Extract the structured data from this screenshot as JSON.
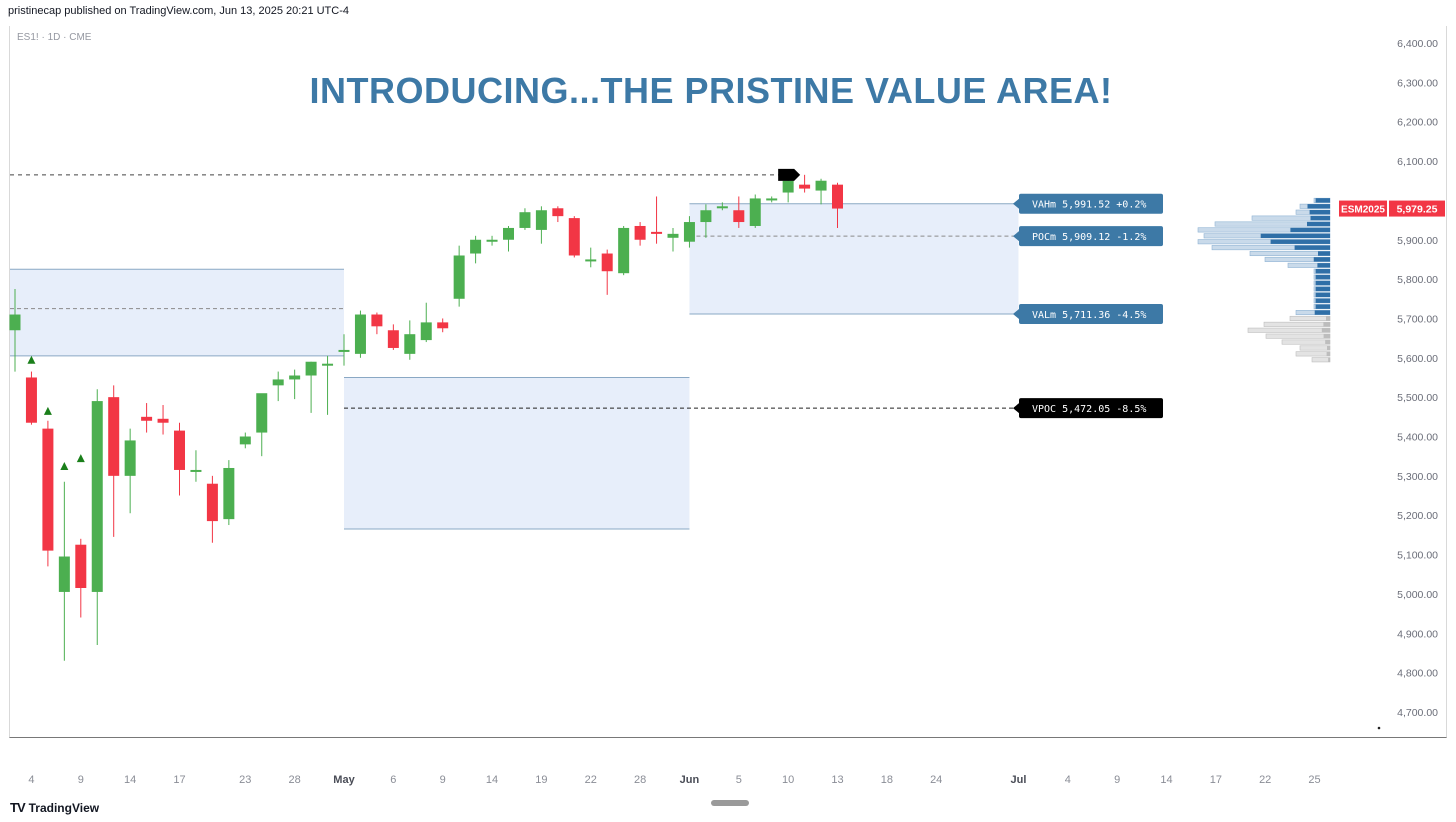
{
  "header": {
    "publisher": "pristinecap published on TradingView.com, Jun 13, 2025 20:21 UTC-4"
  },
  "symbol_line": "ES1! · 1D · CME",
  "headline": "INTRODUCING...THE PRISTINE VALUE AREA!",
  "footer": {
    "brand": "TradingView",
    "logo": "TV"
  },
  "chart_data": {
    "type": "candlestick",
    "title": "INTRODUCING...THE PRISTINE VALUE AREA!",
    "symbol": "ES1! · 1D · CME",
    "ylim": [
      4650,
      6450
    ],
    "y_ticks": [
      "6,400.00",
      "6,300.00",
      "6,200.00",
      "6,100.00",
      "6,000.00",
      "5,900.00",
      "5,800.00",
      "5,700.00",
      "5,600.00",
      "5,500.00",
      "5,400.00",
      "5,300.00",
      "5,200.00",
      "5,100.00",
      "5,000.00",
      "4,900.00",
      "4,800.00",
      "4,700.00"
    ],
    "y_tick_values": [
      6400,
      6300,
      6200,
      6100,
      6000,
      5900,
      5800,
      5700,
      5600,
      5500,
      5400,
      5300,
      5200,
      5100,
      5000,
      4900,
      4800,
      4700
    ],
    "x_ticks": [
      {
        "label": "4",
        "d": 1
      },
      {
        "label": "9",
        "d": 4
      },
      {
        "label": "14",
        "d": 7
      },
      {
        "label": "17",
        "d": 10
      },
      {
        "label": "23",
        "d": 14
      },
      {
        "label": "28",
        "d": 17
      },
      {
        "label": "May",
        "d": 20,
        "bold": true
      },
      {
        "label": "6",
        "d": 23
      },
      {
        "label": "9",
        "d": 26
      },
      {
        "label": "14",
        "d": 29
      },
      {
        "label": "19",
        "d": 32
      },
      {
        "label": "22",
        "d": 35
      },
      {
        "label": "28",
        "d": 38
      },
      {
        "label": "Jun",
        "d": 41,
        "bold": true
      },
      {
        "label": "5",
        "d": 44
      },
      {
        "label": "10",
        "d": 47
      },
      {
        "label": "13",
        "d": 50
      },
      {
        "label": "18",
        "d": 53
      },
      {
        "label": "24",
        "d": 56
      },
      {
        "label": "Jul",
        "d": 61,
        "bold": true
      },
      {
        "label": "4",
        "d": 64
      },
      {
        "label": "9",
        "d": 67
      },
      {
        "label": "14",
        "d": 70
      },
      {
        "label": "17",
        "d": 73
      },
      {
        "label": "22",
        "d": 76
      },
      {
        "label": "25",
        "d": 79
      }
    ],
    "candles": [
      {
        "o": 5670,
        "h": 5775,
        "l": 5565,
        "c": 5710
      },
      {
        "o": 5550,
        "h": 5565,
        "l": 5430,
        "c": 5435
      },
      {
        "o": 5420,
        "h": 5440,
        "l": 5070,
        "c": 5110
      },
      {
        "o": 5005,
        "h": 5285,
        "l": 4830,
        "c": 5095
      },
      {
        "o": 5125,
        "h": 5140,
        "l": 4940,
        "c": 5015
      },
      {
        "o": 5005,
        "h": 5520,
        "l": 4870,
        "c": 5490
      },
      {
        "o": 5500,
        "h": 5530,
        "l": 5145,
        "c": 5300
      },
      {
        "o": 5300,
        "h": 5420,
        "l": 5205,
        "c": 5390
      },
      {
        "o": 5450,
        "h": 5485,
        "l": 5410,
        "c": 5440
      },
      {
        "o": 5445,
        "h": 5480,
        "l": 5405,
        "c": 5435
      },
      {
        "o": 5415,
        "h": 5435,
        "l": 5250,
        "c": 5315
      },
      {
        "o": 5310,
        "h": 5365,
        "l": 5285,
        "c": 5315
      },
      {
        "o": 5280,
        "h": 5300,
        "l": 5130,
        "c": 5185
      },
      {
        "o": 5190,
        "h": 5340,
        "l": 5175,
        "c": 5320
      },
      {
        "o": 5380,
        "h": 5410,
        "l": 5370,
        "c": 5400
      },
      {
        "o": 5410,
        "h": 5505,
        "l": 5350,
        "c": 5510
      },
      {
        "o": 5530,
        "h": 5565,
        "l": 5490,
        "c": 5545
      },
      {
        "o": 5545,
        "h": 5570,
        "l": 5495,
        "c": 5555
      },
      {
        "o": 5555,
        "h": 5590,
        "l": 5460,
        "c": 5590
      },
      {
        "o": 5580,
        "h": 5605,
        "l": 5455,
        "c": 5585
      },
      {
        "o": 5615,
        "h": 5660,
        "l": 5580,
        "c": 5620
      },
      {
        "o": 5610,
        "h": 5720,
        "l": 5600,
        "c": 5710
      },
      {
        "o": 5710,
        "h": 5715,
        "l": 5660,
        "c": 5680
      },
      {
        "o": 5670,
        "h": 5685,
        "l": 5620,
        "c": 5625
      },
      {
        "o": 5610,
        "h": 5695,
        "l": 5595,
        "c": 5660
      },
      {
        "o": 5645,
        "h": 5740,
        "l": 5640,
        "c": 5690
      },
      {
        "o": 5690,
        "h": 5700,
        "l": 5665,
        "c": 5675
      },
      {
        "o": 5750,
        "h": 5885,
        "l": 5730,
        "c": 5860
      },
      {
        "o": 5865,
        "h": 5910,
        "l": 5840,
        "c": 5900
      },
      {
        "o": 5895,
        "h": 5910,
        "l": 5885,
        "c": 5900
      },
      {
        "o": 5900,
        "h": 5935,
        "l": 5870,
        "c": 5930
      },
      {
        "o": 5930,
        "h": 5980,
        "l": 5925,
        "c": 5970
      },
      {
        "o": 5925,
        "h": 5985,
        "l": 5890,
        "c": 5975
      },
      {
        "o": 5980,
        "h": 5985,
        "l": 5945,
        "c": 5960
      },
      {
        "o": 5955,
        "h": 5960,
        "l": 5855,
        "c": 5860
      },
      {
        "o": 5850,
        "h": 5880,
        "l": 5830,
        "c": 5850
      },
      {
        "o": 5865,
        "h": 5875,
        "l": 5760,
        "c": 5820
      },
      {
        "o": 5815,
        "h": 5935,
        "l": 5810,
        "c": 5930
      },
      {
        "o": 5935,
        "h": 5945,
        "l": 5885,
        "c": 5900
      },
      {
        "o": 5920,
        "h": 6010,
        "l": 5890,
        "c": 5915
      },
      {
        "o": 5905,
        "h": 5930,
        "l": 5870,
        "c": 5915
      },
      {
        "o": 5895,
        "h": 5960,
        "l": 5880,
        "c": 5945
      },
      {
        "o": 5945,
        "h": 5990,
        "l": 5905,
        "c": 5975
      },
      {
        "o": 5980,
        "h": 5995,
        "l": 5975,
        "c": 5985
      },
      {
        "o": 5975,
        "h": 6010,
        "l": 5930,
        "c": 5945
      },
      {
        "o": 5935,
        "h": 6015,
        "l": 5930,
        "c": 6005
      },
      {
        "o": 6000,
        "h": 6010,
        "l": 5995,
        "c": 6005
      },
      {
        "o": 6020,
        "h": 6055,
        "l": 5995,
        "c": 6050
      },
      {
        "o": 6040,
        "h": 6065,
        "l": 6020,
        "c": 6030
      },
      {
        "o": 6025,
        "h": 6055,
        "l": 5990,
        "c": 6050
      },
      {
        "o": 6040,
        "h": 6045,
        "l": 5930,
        "c": 5979.25
      }
    ],
    "value_areas": [
      {
        "d0": -1,
        "d1": 20,
        "vah": 5825,
        "val": 5605,
        "poc": 5725
      },
      {
        "d0": 20,
        "d1": 41,
        "vah": 5550,
        "val": 5165,
        "poc": 5472.05
      },
      {
        "d0": 41,
        "d1": 61,
        "vah": 5991.52,
        "val": 5711.36,
        "poc": 5909.12
      }
    ],
    "levels": [
      {
        "label": "VAHm 5,991.52 +0.2%",
        "value": 5991.52,
        "color": "#3d79a6"
      },
      {
        "label": "POCm 5,909.12 -1.2%",
        "value": 5909.12,
        "color": "#3d79a6"
      },
      {
        "label": "VALm 5,711.36 -4.5%",
        "value": 5711.36,
        "color": "#3d79a6"
      },
      {
        "label": "VPOC 5,472.05 -8.5%",
        "value": 5472.05,
        "color": "#000000"
      }
    ],
    "high_line": 6065,
    "markers": [
      {
        "d": 1,
        "y": 5595
      },
      {
        "d": 2,
        "y": 5465
      },
      {
        "d": 3,
        "y": 5325
      },
      {
        "d": 4,
        "y": 5345
      }
    ],
    "flag_marker": {
      "d": 47,
      "y": 6065
    },
    "last_price": {
      "symbol": "ESM2025",
      "value": "5,979.25",
      "num": 5979.25,
      "color": "#f23645"
    },
    "volume_profile": [
      {
        "price": 6000,
        "total": 16,
        "up": 0.9
      },
      {
        "price": 5985,
        "total": 30,
        "up": 0.75
      },
      {
        "price": 5970,
        "total": 34,
        "up": 0.6
      },
      {
        "price": 5955,
        "total": 78,
        "up": 0.25
      },
      {
        "price": 5940,
        "total": 115,
        "up": 0.2
      },
      {
        "price": 5925,
        "total": 132,
        "up": 0.3
      },
      {
        "price": 5910,
        "total": 126,
        "up": 0.55
      },
      {
        "price": 5895,
        "total": 132,
        "up": 0.45
      },
      {
        "price": 5880,
        "total": 118,
        "up": 0.3
      },
      {
        "price": 5865,
        "total": 80,
        "up": 0.15
      },
      {
        "price": 5850,
        "total": 65,
        "up": 0.25
      },
      {
        "price": 5835,
        "total": 42,
        "up": 0.3
      },
      {
        "price": 5820,
        "total": 16,
        "up": 0.9
      },
      {
        "price": 5805,
        "total": 16,
        "up": 0.9
      },
      {
        "price": 5790,
        "total": 16,
        "up": 0.9
      },
      {
        "price": 5775,
        "total": 16,
        "up": 0.9
      },
      {
        "price": 5760,
        "total": 16,
        "up": 0.9
      },
      {
        "price": 5745,
        "total": 16,
        "up": 0.9
      },
      {
        "price": 5730,
        "total": 16,
        "up": 0.9
      },
      {
        "price": 5715,
        "total": 34,
        "up": 0.45
      },
      {
        "price": 5700,
        "total": 40,
        "up": 0.1,
        "gray": true
      },
      {
        "price": 5685,
        "total": 66,
        "up": 0.1,
        "gray": true
      },
      {
        "price": 5670,
        "total": 82,
        "up": 0.1,
        "gray": true
      },
      {
        "price": 5655,
        "total": 64,
        "up": 0.1,
        "gray": true
      },
      {
        "price": 5640,
        "total": 48,
        "up": 0.1,
        "gray": true
      },
      {
        "price": 5625,
        "total": 30,
        "up": 0.1,
        "gray": true
      },
      {
        "price": 5610,
        "total": 34,
        "up": 0.1,
        "gray": true
      },
      {
        "price": 5595,
        "total": 18,
        "up": 0.1,
        "gray": true
      }
    ],
    "colors": {
      "up": "#4caf50",
      "down": "#f23645",
      "va_fill": "#e7eefa",
      "va_line": "#3d79a6",
      "profile_dark": "#2f6fa7",
      "profile_light": "#c9daea",
      "profile_gray": "#d6d6d6"
    }
  }
}
